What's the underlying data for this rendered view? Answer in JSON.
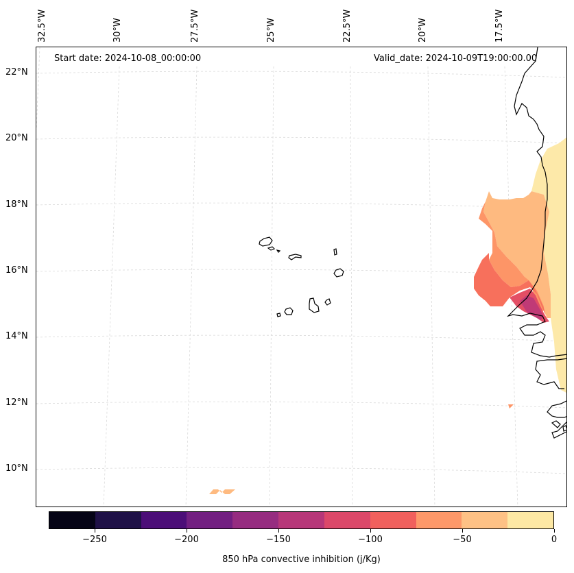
{
  "map": {
    "annotation_left": "Start date: 2024-10-08_00:00:00",
    "annotation_right": "Valid_date: 2024-10-09T19:00:00.00",
    "lon_labels": [
      "32.5°W",
      "30°W",
      "27.5°W",
      "25°W",
      "22.5°W",
      "20°W",
      "17.5°W"
    ],
    "lat_labels": [
      "22°N",
      "20°N",
      "18°N",
      "16°N",
      "14°N",
      "12°N",
      "10°N"
    ],
    "field_colors": {
      "0_to_-25": "#fde9a9",
      "-25_to_-50": "#feba80",
      "-50_to_-75": "#fd9567",
      "-75_to_-100": "#f7705c",
      "-100_to_-125": "#e34e65",
      "-125_to_-150": "#c03a76"
    }
  },
  "colorbar": {
    "label": "850 hPa convective inhibition (j/Kg)",
    "tick_labels": [
      "−250",
      "−200",
      "−150",
      "−100",
      "−50",
      "0"
    ],
    "tick_values": [
      -250,
      -200,
      -150,
      -100,
      -50,
      0
    ],
    "range": [
      -275,
      0
    ],
    "colors": [
      "#050416",
      "#1f1147",
      "#4c0e78",
      "#721f81",
      "#962c80",
      "#b73779",
      "#dc4869",
      "#f1605d",
      "#fd9869",
      "#fec185",
      "#fde8a4"
    ]
  }
}
